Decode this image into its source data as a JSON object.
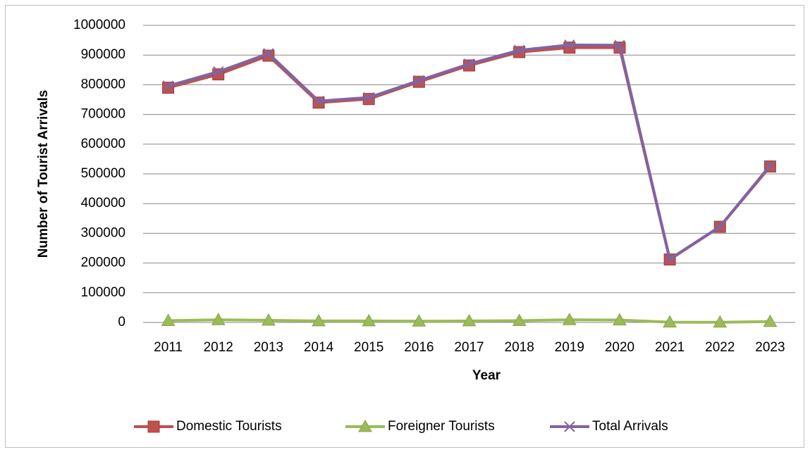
{
  "chart_data": {
    "type": "line",
    "x_label": "Year",
    "y_label": "Number of Tourist Arrivals",
    "categories": [
      "2011",
      "2012",
      "2013",
      "2014",
      "2015",
      "2016",
      "2017",
      "2018",
      "2019",
      "2020",
      "2021",
      "2022",
      "2023"
    ],
    "series": [
      {
        "name": "Domestic Tourists",
        "color": "#c0504d",
        "marker": "square",
        "values": [
          790000,
          835000,
          898000,
          740000,
          752000,
          810000,
          865000,
          910000,
          925000,
          925000,
          212000,
          322000,
          525000
        ]
      },
      {
        "name": "Foreigner Tourists",
        "color": "#9bbb59",
        "marker": "triangle",
        "values": [
          6000,
          9000,
          7000,
          5000,
          5000,
          4000,
          5000,
          6000,
          9000,
          8000,
          1000,
          500,
          3000
        ]
      },
      {
        "name": "Total Arrivals",
        "color": "#8064a2",
        "marker": "x",
        "values": [
          796000,
          844000,
          905000,
          745000,
          757000,
          814000,
          870000,
          916000,
          934000,
          933000,
          213000,
          322500,
          528000
        ]
      }
    ],
    "ylim": [
      0,
      1000000
    ],
    "yticks": [
      0,
      100000,
      200000,
      300000,
      400000,
      500000,
      600000,
      700000,
      800000,
      900000,
      1000000
    ],
    "grid": true,
    "legend": "bottom"
  }
}
